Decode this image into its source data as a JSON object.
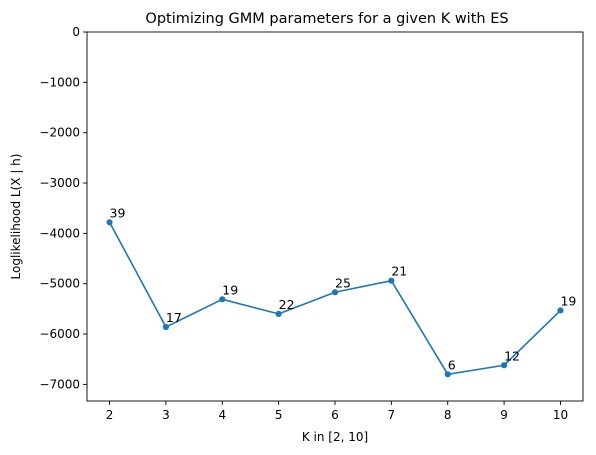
{
  "chart_data": {
    "type": "line",
    "title": "Optimizing GMM parameters for a given K with ES",
    "xlabel": "K in [2, 10]",
    "ylabel": "Loglikelihood L(X | h)",
    "x": [
      2,
      3,
      4,
      5,
      6,
      7,
      8,
      9,
      10
    ],
    "series": [
      {
        "values": [
          -3780,
          -5860,
          -5310,
          -5600,
          -5170,
          -4940,
          -6800,
          -6620,
          -5530
        ],
        "point_labels": [
          "39",
          "17",
          "19",
          "22",
          "25",
          "21",
          "6",
          "12",
          "19"
        ],
        "color": "#1f77b4"
      }
    ],
    "xlim": [
      1.6,
      10.4
    ],
    "ylim": [
      -7330,
      0
    ],
    "x_ticks": [
      2,
      3,
      4,
      5,
      6,
      7,
      8,
      9,
      10
    ],
    "x_tick_labels": [
      "2",
      "3",
      "4",
      "5",
      "6",
      "7",
      "8",
      "9",
      "10"
    ],
    "y_ticks": [
      0,
      -1000,
      -2000,
      -3000,
      -4000,
      -5000,
      -6000,
      -7000
    ],
    "y_tick_labels": [
      "0",
      "−1000",
      "−2000",
      "−3000",
      "−4000",
      "−5000",
      "−6000",
      "−7000"
    ],
    "grid": false,
    "legend": "none"
  }
}
